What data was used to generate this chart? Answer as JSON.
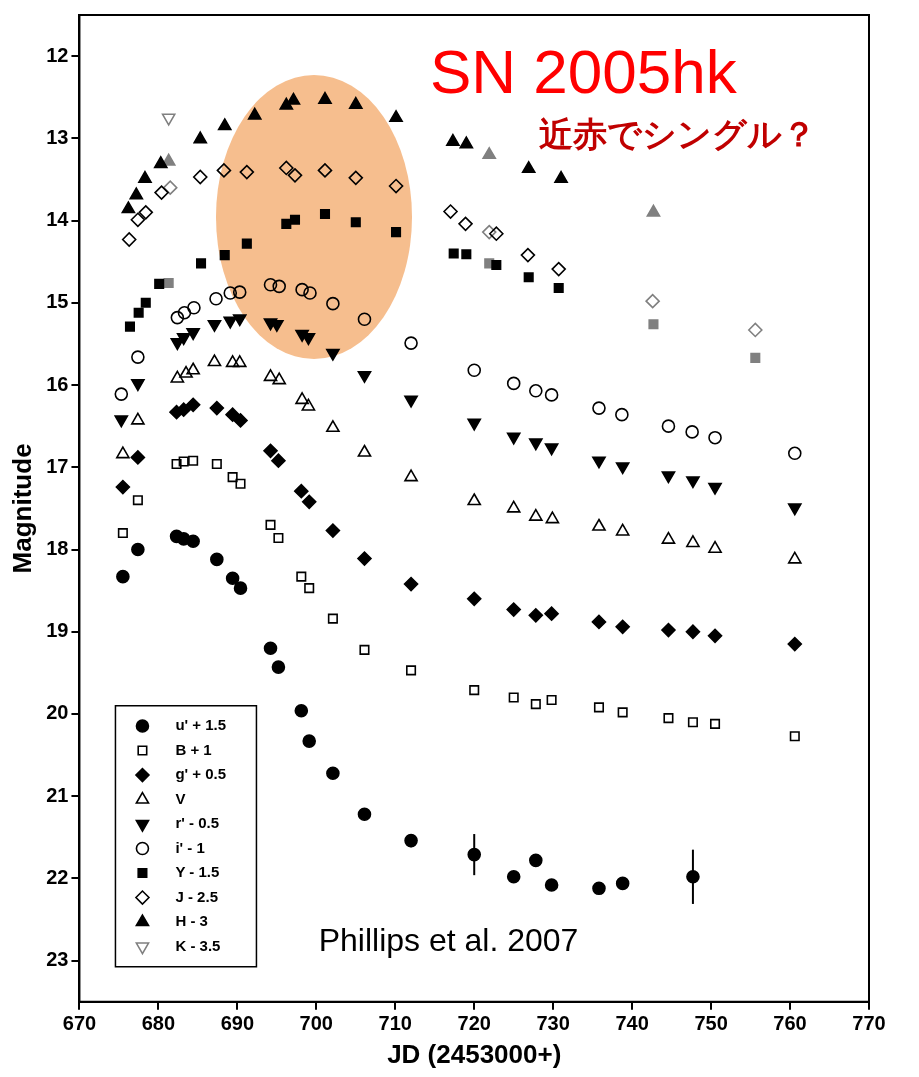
{
  "chart_data": {
    "type": "scatter",
    "title": "SN 2005hk",
    "subtitle": "近赤でシングル？",
    "xlabel": "JD (2453000+)",
    "ylabel": "Magnitude",
    "annotations": [
      "Phillips et al. 2007"
    ],
    "xlim": [
      670,
      770
    ],
    "xticks": [
      670,
      680,
      690,
      700,
      710,
      720,
      730,
      740,
      750,
      760,
      770
    ],
    "ylim": [
      23.5,
      11.5
    ],
    "yticks": [
      12,
      13,
      14,
      15,
      16,
      17,
      18,
      19,
      20,
      21,
      22,
      23
    ],
    "grid": false,
    "legend": "bottom left",
    "series": [
      {
        "name": "u' + 1.5",
        "color": "#000000",
        "marker": "circle",
        "x": [
          675.5,
          677.4,
          682.3,
          683.2,
          684.4,
          687.4,
          689.4,
          690.4,
          694.2,
          695.2,
          698.1,
          699.1,
          702.1,
          706.1,
          712.0,
          720.0,
          725.0,
          727.8,
          729.8,
          735.8,
          738.8,
          747.7
        ],
        "values": [
          18.33,
          18.0,
          17.84,
          17.87,
          17.9,
          18.12,
          18.35,
          18.47,
          19.2,
          19.43,
          19.96,
          20.33,
          20.72,
          21.22,
          21.54,
          21.71,
          21.98,
          21.78,
          22.08,
          22.12,
          22.06,
          21.98
        ],
        "errors": [
          null,
          null,
          null,
          null,
          null,
          null,
          null,
          null,
          null,
          null,
          null,
          null,
          null,
          null,
          0.08,
          0.25,
          null,
          null,
          null,
          null,
          null,
          0.33
        ]
      },
      {
        "name": "B + 1",
        "color": "#000000",
        "marker": "square-open",
        "x": [
          675.5,
          677.4,
          682.3,
          683.2,
          684.4,
          687.4,
          689.4,
          690.4,
          694.2,
          695.2,
          698.1,
          699.1,
          702.1,
          706.1,
          712.0,
          720.0,
          725.0,
          727.8,
          729.8,
          735.8,
          738.8,
          744.6,
          747.7,
          750.5,
          760.6
        ],
        "values": [
          17.8,
          17.4,
          16.96,
          16.93,
          16.92,
          16.96,
          17.12,
          17.2,
          17.7,
          17.86,
          18.33,
          18.47,
          18.84,
          19.22,
          19.47,
          19.71,
          19.8,
          19.88,
          19.83,
          19.92,
          19.98,
          20.05,
          20.1,
          20.12,
          20.27
        ]
      },
      {
        "name": "g' + 0.5",
        "color": "#000000",
        "marker": "diamond",
        "x": [
          675.5,
          677.4,
          682.3,
          683.2,
          684.4,
          687.4,
          689.4,
          690.4,
          694.2,
          695.2,
          698.1,
          699.1,
          702.1,
          706.1,
          712.0,
          720.0,
          725.0,
          727.8,
          729.8,
          735.8,
          738.8,
          744.6,
          747.7,
          750.5,
          760.6
        ],
        "values": [
          17.24,
          16.88,
          16.33,
          16.3,
          16.24,
          16.28,
          16.36,
          16.43,
          16.8,
          16.92,
          17.29,
          17.42,
          17.77,
          18.11,
          18.42,
          18.6,
          18.73,
          18.8,
          18.78,
          18.88,
          18.94,
          18.98,
          19.0,
          19.05,
          19.15
        ]
      },
      {
        "name": "V",
        "color": "#000000",
        "marker": "triangle-open",
        "x": [
          675.5,
          677.4,
          682.4,
          683.5,
          684.4,
          687.1,
          689.4,
          690.3,
          694.2,
          695.3,
          698.2,
          699.0,
          702.1,
          706.1,
          712.0,
          720.0,
          725.0,
          727.8,
          729.9,
          735.8,
          738.8,
          744.6,
          747.7,
          750.5,
          760.6
        ],
        "values": [
          16.84,
          16.43,
          15.92,
          15.86,
          15.82,
          15.72,
          15.73,
          15.73,
          15.9,
          15.94,
          16.18,
          16.26,
          16.52,
          16.82,
          17.12,
          17.41,
          17.5,
          17.6,
          17.63,
          17.72,
          17.78,
          17.88,
          17.92,
          17.99,
          18.12
        ]
      },
      {
        "name": "r' - 0.5",
        "color": "#000000",
        "marker": "triangle-down",
        "x": [
          675.3,
          677.4,
          682.4,
          683.2,
          684.4,
          687.1,
          689.1,
          690.3,
          694.2,
          695.0,
          698.2,
          699.0,
          702.1,
          706.1,
          712.0,
          720.0,
          725.0,
          727.8,
          729.8,
          735.8,
          738.8,
          744.6,
          747.7,
          750.5,
          760.6
        ],
        "values": [
          16.42,
          15.98,
          15.48,
          15.42,
          15.36,
          15.26,
          15.22,
          15.19,
          15.24,
          15.26,
          15.38,
          15.42,
          15.61,
          15.88,
          16.18,
          16.46,
          16.63,
          16.7,
          16.76,
          16.92,
          16.99,
          17.1,
          17.16,
          17.24,
          17.49
        ]
      },
      {
        "name": "i' - 1",
        "color": "#000000",
        "marker": "circle-open",
        "x": [
          675.3,
          677.4,
          682.4,
          683.3,
          684.5,
          687.3,
          689.1,
          690.3,
          694.2,
          695.3,
          698.2,
          699.2,
          702.1,
          706.1,
          712.0,
          720.0,
          725.0,
          727.8,
          729.8,
          735.8,
          738.7,
          744.6,
          747.6,
          750.5,
          760.6
        ],
        "values": [
          16.11,
          15.66,
          15.18,
          15.12,
          15.06,
          14.95,
          14.88,
          14.87,
          14.78,
          14.8,
          14.84,
          14.88,
          15.01,
          15.2,
          15.49,
          15.82,
          15.98,
          16.07,
          16.12,
          16.28,
          16.36,
          16.5,
          16.57,
          16.64,
          16.83
        ]
      },
      {
        "name": "Y - 1.5",
        "color": "#000000",
        "marker": "square",
        "x": [
          676.4,
          677.5,
          678.4,
          680.1,
          685.4,
          688.4,
          691.2,
          696.2,
          697.3,
          701.1,
          705.0,
          710.1,
          717.4,
          719.0,
          722.8,
          726.9,
          730.7
        ],
        "values": [
          15.29,
          15.12,
          15.0,
          14.77,
          14.52,
          14.42,
          14.28,
          14.04,
          13.99,
          13.92,
          14.02,
          14.14,
          14.4,
          14.41,
          14.54,
          14.69,
          14.82
        ]
      },
      {
        "name": "J - 2.5",
        "color": "#000000",
        "marker": "diamond-open",
        "x": [
          676.3,
          677.4,
          678.4,
          680.4,
          685.3,
          688.3,
          691.2,
          696.2,
          697.3,
          701.1,
          705.0,
          710.1,
          717.0,
          718.9,
          722.8,
          726.8,
          730.7
        ],
        "values": [
          14.23,
          13.99,
          13.9,
          13.66,
          13.47,
          13.39,
          13.41,
          13.36,
          13.45,
          13.39,
          13.48,
          13.58,
          13.89,
          14.04,
          14.16,
          14.42,
          14.59
        ]
      },
      {
        "name": "H - 3",
        "color": "#000000",
        "marker": "triangle",
        "x": [
          676.2,
          677.2,
          678.3,
          680.3,
          685.3,
          688.4,
          692.2,
          696.2,
          697.1,
          701.1,
          705.0,
          710.1,
          717.3,
          719.0,
          726.9,
          731.0
        ],
        "values": [
          13.86,
          13.69,
          13.49,
          13.31,
          13.01,
          12.85,
          12.72,
          12.6,
          12.54,
          12.53,
          12.59,
          12.75,
          13.04,
          13.07,
          13.37,
          13.49
        ]
      },
      {
        "name": "K - 3.5",
        "color": "#808080",
        "marker": "triangle-down-open",
        "x": [
          681.3
        ],
        "values": [
          12.75
        ]
      },
      {
        "color": "#808080",
        "marker": "square",
        "x": [
          681.3,
          721.9,
          742.7,
          755.6
        ],
        "values": [
          14.76,
          14.52,
          15.26,
          15.67
        ]
      },
      {
        "color": "#808080",
        "marker": "diamond-open",
        "x": [
          681.5,
          721.9,
          742.6,
          755.6
        ],
        "values": [
          13.6,
          14.14,
          14.98,
          15.33
        ]
      },
      {
        "color": "#808080",
        "marker": "triangle",
        "x": [
          681.3,
          721.9,
          742.7
        ],
        "values": [
          13.28,
          13.2,
          13.9
        ]
      }
    ]
  }
}
